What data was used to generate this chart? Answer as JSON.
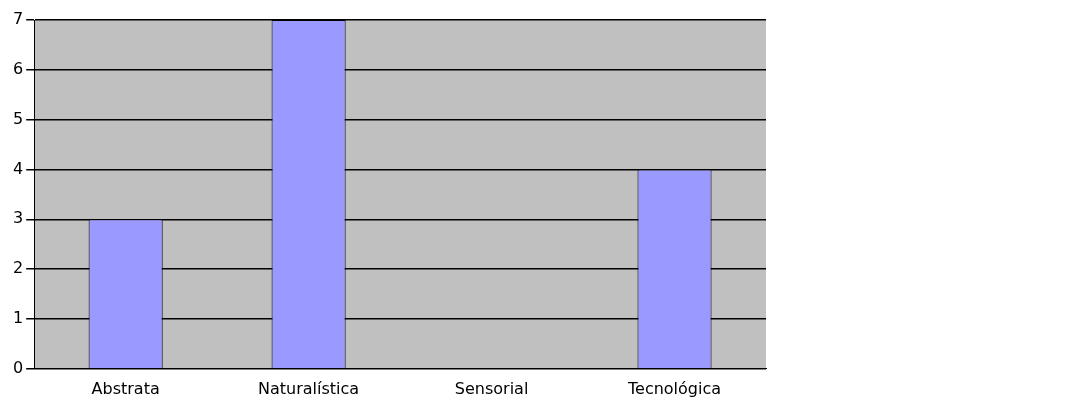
{
  "chart_data": {
    "type": "bar",
    "categories": [
      "Abstrata",
      "Naturalística",
      "Sensorial",
      "Tecnológica"
    ],
    "series": [
      {
        "color": "#9999ff",
        "values": [
          3,
          7,
          0,
          4
        ]
      }
    ],
    "ylim": [
      0,
      7
    ],
    "yticks": [
      0,
      1,
      2,
      3,
      4,
      5,
      6,
      7
    ],
    "grid": "y",
    "legend": false
  }
}
